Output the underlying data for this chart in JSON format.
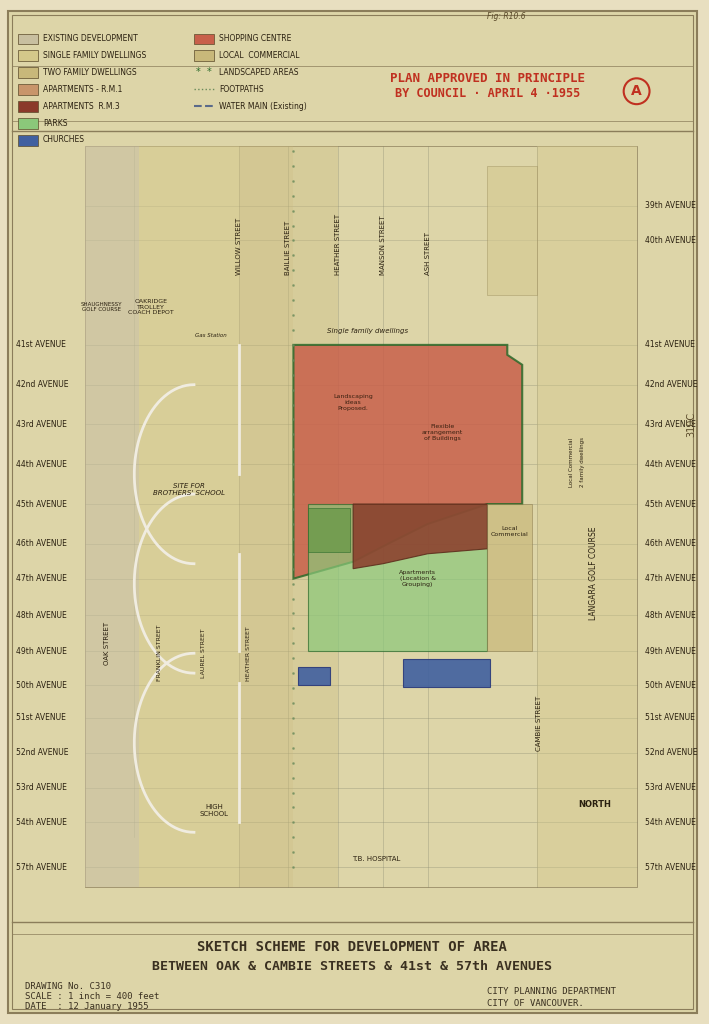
{
  "bg_color": "#e8dfc0",
  "paper_color": "#ddd5a8",
  "border_color": "#8b7d5a",
  "title_main": "SKETCH SCHEME FOR DEVELOPMENT OF AREA",
  "title_sub": "BETWEEN OAK & CAMBIE STREETS & 41st & 57th AVENUES",
  "subtitle_plan": "PLAN APPROVED IN PRINCIPLE",
  "subtitle_plan2": "BY COUNCIL · APRIL 4 ·1955",
  "drawing_no": "DRAWING No. C310",
  "scale": "SCALE : 1 inch = 400 feet",
  "date": "DATE  : 12 January 1955",
  "dept": "CITY PLANNING DEPARTMENT",
  "city": "CITY OF VANCOUVER.",
  "legend_items": [
    {
      "label": "EXISTING DEVELOPMENT",
      "color": "#c8bfa0"
    },
    {
      "label": "SINGLE FAMILY DWELLINGS",
      "color": "#d4c88a"
    },
    {
      "label": "TWO FAMILY DWELLINGS",
      "color": "#c8b87a"
    },
    {
      "label": "APARTMENTS - R.M.1",
      "color": "#c8956a"
    },
    {
      "label": "APARTMENTS  R.M.3",
      "color": "#8b3a2a"
    },
    {
      "label": "PARKS",
      "color": "#8bc87a"
    },
    {
      "label": "CHURCHES",
      "color": "#4060a0"
    }
  ],
  "legend_items2": [
    {
      "label": "SHOPPING CENTRE",
      "color": "#c8604a"
    },
    {
      "label": "LOCAL  COMMERCIAL",
      "color": "#c8b87a"
    },
    {
      "label": "LANDSCAPED AREAS",
      "color": "#6a9a4a"
    },
    {
      "label": "FOOTPATHS",
      "color": "#6a8a5a"
    },
    {
      "label": "WATER MAIN (Existing)",
      "color": "#5a6a8a"
    }
  ],
  "map_bg": "#ddd5a8",
  "shopping_color": "#c8604a",
  "rm3_color": "#8b3a2a",
  "park_color": "#8bc87a",
  "church_color": "#4060a0",
  "rm1_color": "#c8956a",
  "sfd_color": "#d4c88a",
  "tfd_color": "#c8b87a",
  "existing_color": "#c8bfa0",
  "green_border": "#2a6a2a",
  "road_color": "#f0ece0"
}
